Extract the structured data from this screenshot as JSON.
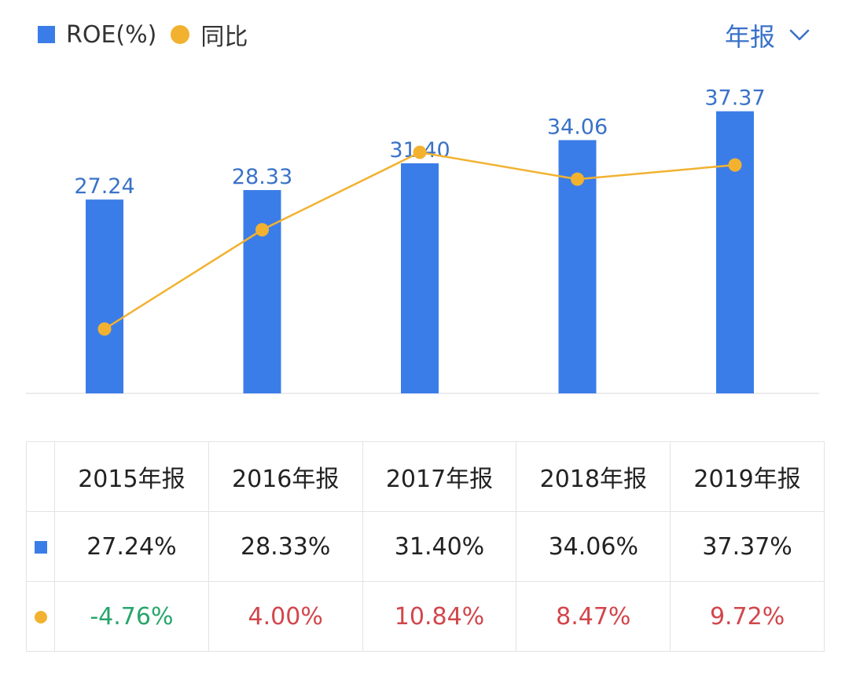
{
  "legend": {
    "roe_label": "ROE(%)",
    "yoy_label": "同比"
  },
  "period_selector": {
    "label": "年报",
    "icon": "chevron-down-icon"
  },
  "colors": {
    "bar": "#3b7de8",
    "line": "#f2b230",
    "label_blue": "#3a72c9",
    "positive": "#d2464c",
    "negative": "#27a56b",
    "accent": "#3a72c9"
  },
  "chart_data": {
    "type": "bar",
    "categories": [
      "2015年报",
      "2016年报",
      "2017年报",
      "2018年报",
      "2019年报"
    ],
    "series": [
      {
        "name": "ROE(%)",
        "type": "bar",
        "values": [
          27.24,
          28.33,
          31.4,
          34.06,
          37.37
        ],
        "value_labels": [
          "27.24",
          "28.33",
          "31.40",
          "34.06",
          "37.37"
        ]
      },
      {
        "name": "同比",
        "type": "line",
        "values": [
          -4.76,
          4.0,
          10.84,
          8.47,
          9.72
        ]
      }
    ],
    "legend_position": "top-left",
    "grid": false
  },
  "table": {
    "headers": [
      "2015年报",
      "2016年报",
      "2017年报",
      "2018年报",
      "2019年报"
    ],
    "roe_row": [
      "27.24%",
      "28.33%",
      "31.40%",
      "34.06%",
      "37.37%"
    ],
    "yoy_row": [
      "-4.76%",
      "4.00%",
      "10.84%",
      "8.47%",
      "9.72%"
    ]
  }
}
